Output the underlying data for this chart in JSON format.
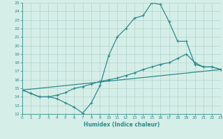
{
  "line1_x": [
    0,
    1,
    2,
    3,
    4,
    5,
    6,
    7,
    8,
    9,
    10,
    11,
    12,
    13,
    14,
    15,
    16,
    17,
    18,
    19,
    20,
    21,
    22,
    23
  ],
  "line1_y": [
    14.8,
    14.4,
    14.0,
    14.0,
    13.8,
    13.3,
    12.8,
    12.1,
    13.3,
    15.3,
    18.8,
    21.0,
    22.0,
    23.2,
    23.5,
    25.0,
    24.8,
    22.8,
    20.5,
    20.5,
    17.8,
    17.5,
    17.5,
    17.2
  ],
  "line2_x": [
    0,
    1,
    2,
    3,
    4,
    5,
    6,
    7,
    8,
    9,
    10,
    11,
    12,
    13,
    14,
    15,
    16,
    17,
    18,
    19,
    20,
    21,
    22,
    23
  ],
  "line2_y": [
    14.8,
    14.4,
    14.0,
    14.0,
    14.2,
    14.5,
    15.0,
    15.2,
    15.5,
    15.8,
    16.0,
    16.2,
    16.5,
    16.8,
    17.2,
    17.5,
    17.8,
    18.0,
    18.5,
    19.0,
    18.0,
    17.5,
    17.5,
    17.2
  ],
  "line3_x": [
    0,
    23
  ],
  "line3_y": [
    14.8,
    17.2
  ],
  "color": "#2e8b8b",
  "bg_color": "#d6eee8",
  "grid_color": "#b0d4cc",
  "xlabel": "Humidex (Indice chaleur)",
  "ylim": [
    12,
    25
  ],
  "xlim": [
    0,
    23
  ],
  "yticks": [
    12,
    13,
    14,
    15,
    16,
    17,
    18,
    19,
    20,
    21,
    22,
    23,
    24,
    25
  ],
  "xticks": [
    0,
    1,
    2,
    3,
    4,
    5,
    6,
    7,
    8,
    9,
    10,
    11,
    12,
    13,
    14,
    15,
    16,
    17,
    18,
    19,
    20,
    21,
    22,
    23
  ],
  "marker": "+",
  "markersize": 3,
  "linewidth": 0.9
}
